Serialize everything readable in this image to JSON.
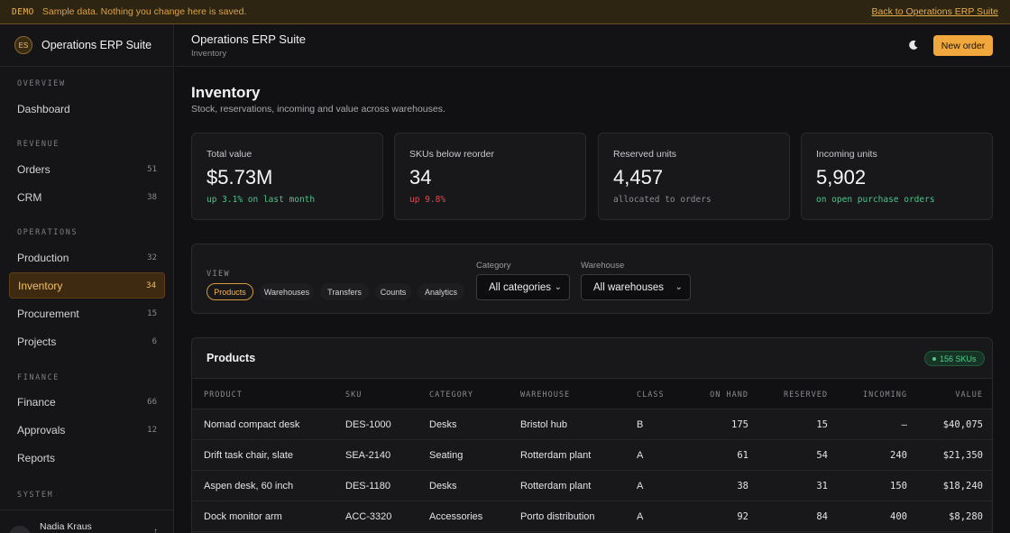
{
  "banner": {
    "tag": "DEMO",
    "message": "Sample data. Nothing you change here is saved.",
    "back_link": "Back to Operations ERP Suite"
  },
  "brand": {
    "initials": "ES",
    "name": "Operations ERP Suite"
  },
  "nav": {
    "sections": [
      "OVERVIEW",
      "REVENUE",
      "OPERATIONS",
      "FINANCE",
      "SYSTEM"
    ],
    "items": [
      {
        "label": "Dashboard",
        "count": ""
      },
      {
        "label": "Orders",
        "count": "51"
      },
      {
        "label": "CRM",
        "count": "38"
      },
      {
        "label": "Production",
        "count": "32"
      },
      {
        "label": "Inventory",
        "count": "34"
      },
      {
        "label": "Procurement",
        "count": "15"
      },
      {
        "label": "Projects",
        "count": "6"
      },
      {
        "label": "Finance",
        "count": "66"
      },
      {
        "label": "Approvals",
        "count": "12"
      },
      {
        "label": "Reports",
        "count": ""
      }
    ]
  },
  "user": {
    "initials": "NK",
    "name": "Nadia Kraus"
  },
  "header": {
    "title": "Operations ERP Suite",
    "subtitle": "Inventory",
    "new_order": "New order"
  },
  "page": {
    "title": "Inventory",
    "subtitle": "Stock, reservations, incoming and value across warehouses."
  },
  "kpis": [
    {
      "label": "Total value",
      "value": "$5.73M",
      "sub": "up 3.1% on last month",
      "sub_color": "#4cc38a"
    },
    {
      "label": "SKUs below reorder",
      "value": "34",
      "sub": "up 9.8%",
      "sub_color": "#e5484d"
    },
    {
      "label": "Reserved units",
      "value": "4,457",
      "sub": "allocated to orders",
      "sub_color": "#8a8a90"
    },
    {
      "label": "Incoming units",
      "value": "5,902",
      "sub": "on open purchase orders",
      "sub_color": "#4cc38a"
    }
  ],
  "filters": {
    "view_label": "VIEW",
    "views": [
      "Products",
      "Warehouses",
      "Transfers",
      "Counts",
      "Analytics"
    ],
    "category_label": "Category",
    "category_value": "All categories",
    "warehouse_label": "Warehouse",
    "warehouse_value": "All warehouses"
  },
  "table": {
    "title": "Products",
    "badge": "156 SKUs",
    "columns": [
      "PRODUCT",
      "SKU",
      "CATEGORY",
      "WAREHOUSE",
      "CLASS",
      "ON HAND",
      "RESERVED",
      "INCOMING",
      "VALUE"
    ],
    "rows": [
      [
        "Nomad compact desk",
        "DES-1000",
        "Desks",
        "Bristol hub",
        "B",
        "175",
        "15",
        "—",
        "$40,075"
      ],
      [
        "Drift task chair, slate",
        "SEA-2140",
        "Seating",
        "Rotterdam plant",
        "A",
        "61",
        "54",
        "240",
        "$21,350"
      ],
      [
        "Aspen desk, 60 inch",
        "DES-1180",
        "Desks",
        "Rotterdam plant",
        "A",
        "38",
        "31",
        "150",
        "$18,240"
      ],
      [
        "Dock monitor arm",
        "ACC-3320",
        "Accessories",
        "Porto distribution",
        "A",
        "92",
        "84",
        "400",
        "$8,280"
      ]
    ]
  }
}
